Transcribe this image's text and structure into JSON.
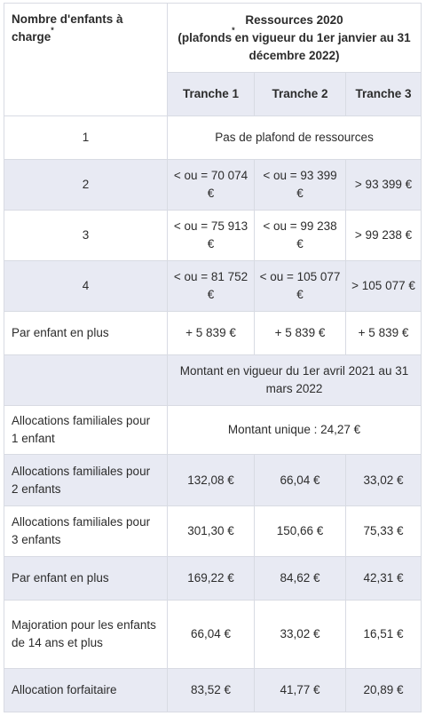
{
  "header": {
    "col1_label": "Nombre d'enfants à charge",
    "col1_sup": "*",
    "resources_title": "Ressources 2020",
    "resources_sub_a": "(plafonds",
    "resources_sub_sup": "*",
    "resources_sub_b": "en vigueur du 1er janvier au 31 décembre 2022)",
    "tranches": [
      "Tranche 1",
      "Tranche 2",
      "Tranche 3"
    ]
  },
  "ceiling_rows": [
    {
      "label": "1",
      "merged": "Pas de plafond de ressources"
    },
    {
      "label": "2",
      "values": [
        "< ou = 70 074 €",
        "< ou = 93 399 €",
        "> 93 399 €"
      ]
    },
    {
      "label": "3",
      "values": [
        "< ou = 75 913 €",
        "< ou = 99 238 €",
        "> 99 238 €"
      ]
    },
    {
      "label": "4",
      "values": [
        "< ou = 81 752 €",
        "< ou = 105 077 €",
        "> 105 077 €"
      ]
    },
    {
      "label": "Par enfant en plus",
      "values": [
        "+ 5 839 €",
        "+ 5 839 €",
        "+ 5 839 €"
      ]
    }
  ],
  "amounts_header": "Montant en vigueur du 1er avril 2021 au 31 mars 2022",
  "amount_rows": [
    {
      "label": "Allocations familiales pour 1 enfant",
      "merged": "Montant unique : 24,27 €"
    },
    {
      "label": "Allocations familiales pour 2 enfants",
      "values": [
        "132,08 €",
        "66,04 €",
        "33,02 €"
      ]
    },
    {
      "label": "Allocations familiales pour 3 enfants",
      "values": [
        "301,30 €",
        "150,66 €",
        "75,33 €"
      ]
    },
    {
      "label": "Par enfant en plus",
      "values": [
        "169,22 €",
        "84,62 €",
        "42,31 €"
      ]
    },
    {
      "label": "Majoration pour les enfants de 14 ans et plus",
      "values": [
        "66,04 €",
        "33,02 €",
        "16,51 €"
      ]
    },
    {
      "label": "Allocation forfaitaire",
      "values": [
        "83,52 €",
        "41,77 €",
        "20,89 €"
      ]
    }
  ]
}
